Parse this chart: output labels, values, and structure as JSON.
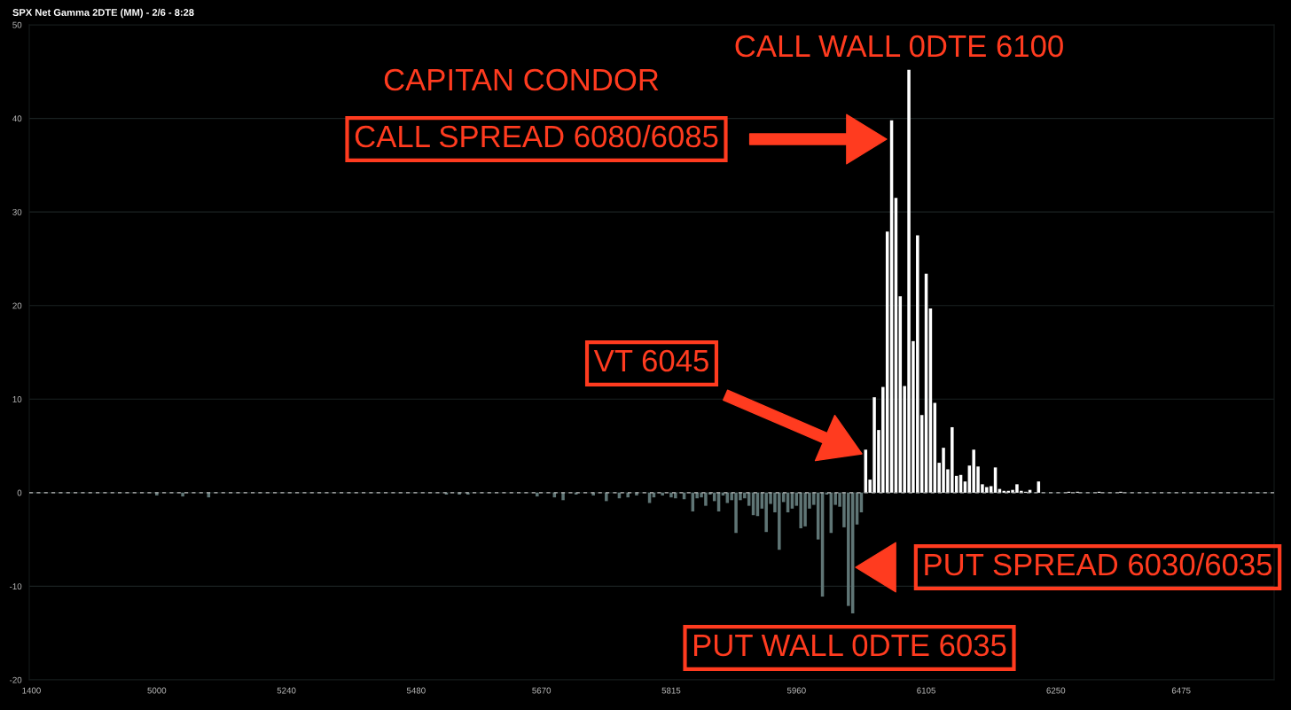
{
  "chart_data": {
    "type": "bar",
    "title": "SPX Net Gamma 2DTE (MM) - 2/6 - 8:28",
    "categories": [
      "1400",
      null,
      null,
      null,
      null,
      null,
      null,
      null,
      null,
      null,
      null,
      null,
      null,
      null,
      null,
      null,
      null,
      null,
      null,
      null,
      null,
      null,
      null,
      null,
      null,
      null,
      null,
      null,
      null,
      "5000",
      null,
      null,
      null,
      null,
      null,
      null,
      null,
      null,
      null,
      null,
      null,
      null,
      null,
      null,
      null,
      null,
      null,
      null,
      null,
      null,
      null,
      null,
      null,
      null,
      null,
      null,
      null,
      null,
      null,
      "5240",
      null,
      null,
      null,
      null,
      null,
      null,
      null,
      null,
      null,
      null,
      null,
      null,
      null,
      null,
      null,
      null,
      null,
      null,
      null,
      null,
      null,
      null,
      null,
      null,
      null,
      null,
      null,
      null,
      null,
      "5480",
      null,
      null,
      null,
      null,
      null,
      null,
      null,
      null,
      null,
      null,
      null,
      null,
      null,
      null,
      null,
      null,
      null,
      null,
      null,
      null,
      null,
      null,
      null,
      null,
      null,
      null,
      null,
      null,
      "5670",
      null,
      null,
      null,
      null,
      null,
      null,
      null,
      null,
      null,
      null,
      null,
      null,
      null,
      null,
      null,
      null,
      null,
      null,
      null,
      null,
      null,
      null,
      null,
      null,
      null,
      null,
      null,
      null,
      null,
      "5815",
      null,
      null,
      null,
      null,
      null,
      null,
      null,
      null,
      null,
      null,
      null,
      null,
      null,
      null,
      null,
      null,
      null,
      null,
      null,
      null,
      null,
      null,
      null,
      null,
      null,
      null,
      null,
      null,
      "5960",
      null,
      null,
      null,
      null,
      null,
      null,
      null,
      null,
      null,
      null,
      null,
      null,
      null,
      null,
      null,
      null,
      null,
      null,
      null,
      null,
      null,
      null,
      null,
      null,
      null,
      null,
      null,
      null,
      null,
      "6105",
      null,
      null,
      null,
      null,
      null,
      null,
      null,
      null,
      null,
      null,
      null,
      null,
      null,
      null,
      null,
      null,
      null,
      null,
      null,
      null,
      null,
      null,
      null,
      null,
      null,
      null,
      null,
      null,
      null,
      "6250",
      null,
      null,
      null,
      null,
      null,
      null,
      null,
      null,
      null,
      null,
      null,
      null,
      null,
      null,
      null,
      null,
      null,
      null,
      null,
      null,
      null,
      null,
      null,
      null,
      null,
      null,
      null,
      null,
      "6475",
      null,
      null,
      null,
      null,
      null,
      null,
      null,
      null,
      null,
      null,
      null,
      null,
      null,
      null,
      null,
      null,
      null,
      null,
      null,
      null,
      null
    ],
    "stacked": true,
    "series": [
      {
        "color": "#ffffff",
        "values": [
          null,
          null,
          null,
          null,
          null,
          null,
          null,
          null,
          null,
          null,
          null,
          null,
          null,
          null,
          null,
          null,
          null,
          null,
          null,
          null,
          null,
          null,
          null,
          null,
          null,
          null,
          null,
          null,
          null,
          null,
          null,
          null,
          null,
          null,
          null,
          null,
          null,
          null,
          null,
          null,
          null,
          null,
          null,
          null,
          null,
          null,
          null,
          null,
          null,
          null,
          null,
          null,
          null,
          null,
          null,
          null,
          null,
          null,
          null,
          null,
          null,
          null,
          null,
          null,
          null,
          null,
          null,
          null,
          null,
          null,
          null,
          null,
          null,
          null,
          null,
          null,
          null,
          null,
          null,
          null,
          null,
          null,
          null,
          null,
          null,
          null,
          null,
          null,
          null,
          null,
          null,
          null,
          null,
          null,
          null,
          null,
          null,
          null,
          null,
          null,
          null,
          null,
          null,
          null,
          null,
          null,
          null,
          null,
          null,
          null,
          null,
          null,
          null,
          null,
          null,
          null,
          null,
          null,
          null,
          null,
          null,
          null,
          null,
          null,
          null,
          null,
          null,
          null,
          null,
          null,
          null,
          null,
          null,
          null,
          null,
          null,
          null,
          null,
          null,
          null,
          null,
          null,
          null,
          null,
          null,
          null,
          null,
          null,
          null,
          null,
          null,
          null,
          null,
          null,
          null,
          null,
          null,
          null,
          null,
          null,
          null,
          null,
          null,
          null,
          null,
          null,
          null,
          null,
          null,
          null,
          null,
          null,
          null,
          null,
          null,
          null,
          null,
          null,
          null,
          null,
          null,
          null,
          null,
          null,
          null,
          null,
          null,
          null,
          null,
          null,
          null,
          null,
          null,
          4.6,
          1.4,
          10.2,
          6.7,
          11.3,
          27.9,
          39.8,
          31.5,
          21.0,
          11.4,
          45.2,
          16.2,
          27.5,
          8.3,
          23.4,
          19.7,
          9.6,
          3.2,
          4.8,
          2.5,
          7.0,
          1.8,
          1.9,
          1.2,
          2.9,
          4.6,
          2.8,
          0.9,
          0.6,
          0.7,
          2.7,
          0.4,
          0.2,
          0.2,
          0.3,
          0.9,
          0.2,
          0.1,
          0.3,
          null,
          1.2,
          null,
          null,
          null,
          null,
          null,
          null,
          0.1,
          null,
          0.1,
          null,
          null,
          null,
          null,
          0.1,
          null,
          null,
          null,
          null,
          0.1,
          null,
          null,
          null,
          null,
          null,
          null,
          null,
          null,
          null,
          null,
          null,
          null,
          null,
          null,
          null,
          null,
          null,
          null,
          null,
          null,
          null,
          null,
          null,
          null,
          null,
          null,
          null,
          null,
          null,
          null,
          null,
          null,
          null,
          null,
          null
        ]
      },
      {
        "color": "#5f7575",
        "values": [
          null,
          null,
          null,
          null,
          null,
          null,
          null,
          null,
          null,
          null,
          null,
          null,
          null,
          null,
          null,
          null,
          null,
          null,
          null,
          null,
          null,
          null,
          null,
          null,
          null,
          null,
          null,
          null,
          null,
          -0.3,
          null,
          null,
          null,
          null,
          null,
          -0.4,
          null,
          null,
          null,
          null,
          null,
          -0.5,
          null,
          null,
          null,
          null,
          null,
          null,
          null,
          null,
          null,
          null,
          null,
          null,
          null,
          null,
          null,
          null,
          null,
          null,
          null,
          null,
          null,
          null,
          null,
          null,
          null,
          null,
          null,
          null,
          null,
          null,
          null,
          null,
          null,
          null,
          null,
          null,
          null,
          null,
          null,
          null,
          null,
          null,
          null,
          null,
          null,
          null,
          null,
          null,
          null,
          null,
          null,
          null,
          null,
          null,
          -0.2,
          null,
          null,
          -0.2,
          null,
          -0.2,
          null,
          null,
          null,
          null,
          null,
          null,
          null,
          null,
          null,
          null,
          null,
          null,
          null,
          null,
          null,
          -0.4,
          null,
          null,
          null,
          -0.5,
          null,
          -0.8,
          null,
          null,
          -0.2,
          null,
          null,
          null,
          -0.3,
          null,
          null,
          -0.9,
          null,
          null,
          -0.6,
          null,
          -0.5,
          null,
          -0.3,
          null,
          null,
          -1.1,
          -0.5,
          null,
          -0.3,
          null,
          -0.5,
          -0.6,
          null,
          -0.7,
          null,
          -2.0,
          -0.6,
          -0.5,
          -1.4,
          -0.2,
          -0.9,
          -2.0,
          -0.3,
          -1.1,
          -0.8,
          -4.3,
          -0.8,
          -0.6,
          -1.4,
          -2.4,
          -2.5,
          -1.7,
          -4.2,
          -1.2,
          -2.1,
          -6.1,
          -1.0,
          -2.1,
          -1.7,
          -1.4,
          -3.8,
          -3.6,
          -1.7,
          -1.3,
          -5.0,
          -11.1,
          -0.2,
          -4.3,
          -1.3,
          -1.5,
          -3.7,
          -12.1,
          -12.9,
          -3.4,
          -2.1,
          null,
          null,
          null,
          null,
          null,
          null,
          null,
          null,
          null,
          null,
          null,
          null,
          null,
          null,
          null,
          null,
          null,
          null,
          null,
          null,
          null,
          null,
          null,
          null,
          null,
          null,
          null,
          null,
          null,
          null,
          null,
          null,
          null,
          null,
          null,
          null,
          null,
          null,
          null,
          null,
          null,
          null,
          null,
          null,
          null,
          null,
          null,
          null,
          null,
          null,
          null,
          null,
          null,
          null,
          null,
          null,
          null,
          null,
          null,
          null,
          null,
          null,
          null,
          null,
          null,
          null,
          null,
          null,
          null,
          null,
          null,
          null,
          null,
          null,
          null,
          null,
          null,
          null,
          null,
          null,
          null,
          null,
          null,
          null,
          null,
          null,
          null,
          null,
          null,
          null,
          null,
          null,
          null,
          null,
          null
        ]
      }
    ],
    "ylim": [
      -20,
      50
    ],
    "yticks": [
      -20,
      -10,
      0,
      10,
      20,
      30,
      40,
      50
    ],
    "grid": "y",
    "ref_lines": [
      {
        "axis": "y",
        "value": 0,
        "color": "#bbbbbb",
        "line_style": "dashed"
      }
    ],
    "annotations": [
      "CAPITAN CONDOR",
      "CALL WALL 0DTE 6100",
      "CALL SPREAD 6080/6085",
      "VT 6045",
      "PUT SPREAD 6030/6035",
      "PUT WALL 0DTE 6035"
    ]
  }
}
